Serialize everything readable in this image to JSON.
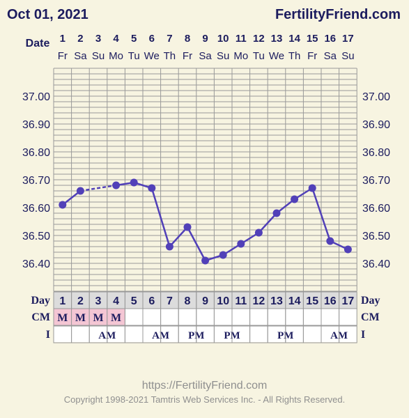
{
  "header": {
    "title": "Oct 01, 2021",
    "brand": "FertilityFriend.com"
  },
  "row_labels": {
    "date": "Date",
    "day": "Day",
    "cm": "CM",
    "intercourse": "I"
  },
  "chart_data": {
    "type": "line",
    "title": "",
    "xlabel": "",
    "ylabel": "",
    "x": [
      1,
      2,
      3,
      4,
      5,
      6,
      7,
      8,
      9,
      10,
      11,
      12,
      13,
      14,
      15,
      16,
      17
    ],
    "weekdays": [
      "Fr",
      "Sa",
      "Su",
      "Mo",
      "Tu",
      "We",
      "Th",
      "Fr",
      "Sa",
      "Su",
      "Mo",
      "Tu",
      "We",
      "Th",
      "Fr",
      "Sa",
      "Su"
    ],
    "series": [
      {
        "values": [
          36.61,
          36.66,
          null,
          36.68,
          36.69,
          36.67,
          36.46,
          36.53,
          36.41,
          36.43,
          36.47,
          36.51,
          36.58,
          36.63,
          36.67,
          36.48,
          36.45
        ]
      }
    ],
    "ylim": [
      36.3,
      37.1
    ],
    "yticks": [
      "37.00",
      "36.90",
      "36.80",
      "36.70",
      "36.60",
      "36.50",
      "36.40"
    ],
    "grid": true,
    "legend": "none",
    "cm": [
      "M",
      "M",
      "M",
      "M",
      "",
      "",
      "",
      "",
      "",
      "",
      "",
      "",
      "",
      "",
      "",
      "",
      ""
    ],
    "intercourse": [
      "",
      "",
      "AM",
      "",
      "",
      "AM",
      "",
      "PM",
      "",
      "PM",
      "",
      "",
      "PM",
      "",
      "",
      "AM",
      ""
    ],
    "colors": {
      "line": "#5140b8",
      "point": "#5140b8",
      "cm_fill": "#f4c6d4",
      "grid": "#999999",
      "text": "#1c1c5e"
    }
  },
  "footer": {
    "url": "https://FertilityFriend.com",
    "copyright": "Copyright 1998-2021 Tamtris Web Services Inc. - All Rights Reserved."
  }
}
